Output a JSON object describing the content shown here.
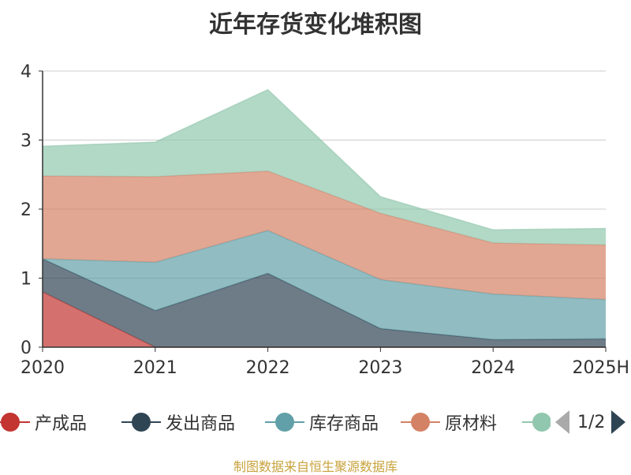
{
  "chart_data": {
    "type": "area",
    "stacked": true,
    "title": "近年存货变化堆积图",
    "x": [
      "2020",
      "2021",
      "2022",
      "2023",
      "2024",
      "2025H"
    ],
    "ylim": [
      0,
      4
    ],
    "yticks": [
      "0",
      "1",
      "2",
      "3",
      "4"
    ],
    "grid": true,
    "legend_position": "bottom",
    "series": [
      {
        "name": "产成品",
        "color": "#c23531",
        "values": [
          0.8,
          0.0,
          0.0,
          0.0,
          0.0,
          0.0
        ]
      },
      {
        "name": "发出商品",
        "color": "#2f4554",
        "values": [
          0.48,
          0.53,
          1.07,
          0.27,
          0.11,
          0.12
        ]
      },
      {
        "name": "库存商品",
        "color": "#61a0a8",
        "values": [
          0.0,
          0.7,
          0.62,
          0.71,
          0.66,
          0.57
        ]
      },
      {
        "name": "原材料",
        "color": "#d48265",
        "values": [
          1.2,
          1.24,
          0.86,
          0.96,
          0.74,
          0.79
        ]
      },
      {
        "name": "",
        "color": "#91c7ae",
        "values": [
          0.43,
          0.5,
          1.18,
          0.24,
          0.19,
          0.24
        ]
      }
    ]
  },
  "legend": {
    "pager_text": "1/2"
  },
  "source_note": "制图数据来自恒生聚源数据库"
}
